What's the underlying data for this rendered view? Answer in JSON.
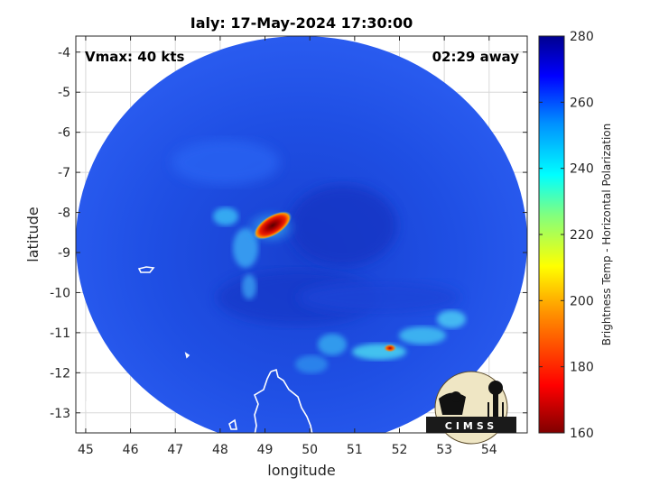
{
  "title": "Ialy: 17-May-2024 17:30:00",
  "vmax_text": "Vmax: 40 kts",
  "away_text": "02:29 away",
  "xlabel": "longitude",
  "ylabel": "latitude",
  "x_ticks": [
    "45",
    "46",
    "47",
    "48",
    "49",
    "50",
    "51",
    "52",
    "53",
    "54"
  ],
  "y_ticks": [
    "-4",
    "-5",
    "-6",
    "-7",
    "-8",
    "-9",
    "-10",
    "-11",
    "-12",
    "-13"
  ],
  "colorbar": {
    "label": "Brightness Temp - Horizontal Polarization",
    "ticks": [
      "280",
      "260",
      "240",
      "220",
      "200",
      "180",
      "160"
    ],
    "range": [
      160,
      280
    ]
  },
  "logo": {
    "text": "CIMSS"
  },
  "colors": {
    "background_field": "#1e50e6",
    "deep_blue": "#1638c8",
    "convection_red": "#d81010",
    "convection_core": "#6a0000",
    "coastline": "#ffffff"
  }
}
